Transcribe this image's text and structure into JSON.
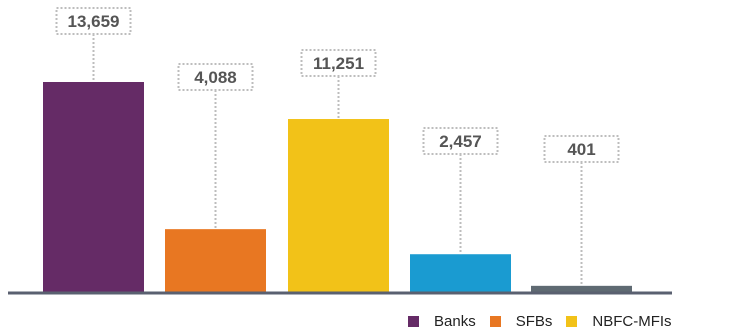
{
  "chart_data": {
    "type": "bar",
    "categories": [
      "Banks",
      "SFBs",
      "NBFC-MFIs",
      "",
      ""
    ],
    "values": [
      13659,
      4088,
      11251,
      2457,
      401
    ],
    "value_labels": [
      "13,659",
      "4,088",
      "11,251",
      "2,457",
      "401"
    ],
    "colors": [
      "#652B66",
      "#E87722",
      "#F2C218",
      "#1A9BD1",
      "#5F6A72"
    ],
    "title": "",
    "xlabel": "",
    "ylabel": "",
    "ylim": [
      0,
      13659
    ],
    "grid": false,
    "legend_position": "bottom-right"
  },
  "legend": [
    {
      "label": "Banks",
      "color": "#652B66"
    },
    {
      "label": "SFBs",
      "color": "#E87722"
    },
    {
      "label": "NBFC-MFIs",
      "color": "#F2C218"
    }
  ],
  "colors": {
    "axis": "#5A6070",
    "callout_border": "#BDBDBD",
    "label_text": "#555555"
  }
}
